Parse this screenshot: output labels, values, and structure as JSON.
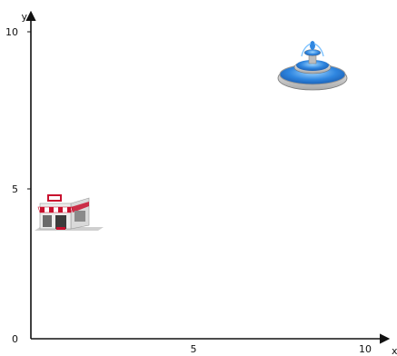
{
  "axes": {
    "x_name": "x",
    "y_name": "y",
    "x_range": [
      0,
      10
    ],
    "y_range": [
      0,
      10
    ],
    "x_ticks": [
      "5",
      "10"
    ],
    "y_ticks": [
      "10",
      "5",
      "0"
    ]
  },
  "objects": [
    {
      "name": "shop",
      "icon": "shop-icon",
      "x": 1,
      "y": 3.8
    },
    {
      "name": "fountain",
      "icon": "fountain-icon",
      "x": 8.3,
      "y": 9.0
    }
  ]
}
